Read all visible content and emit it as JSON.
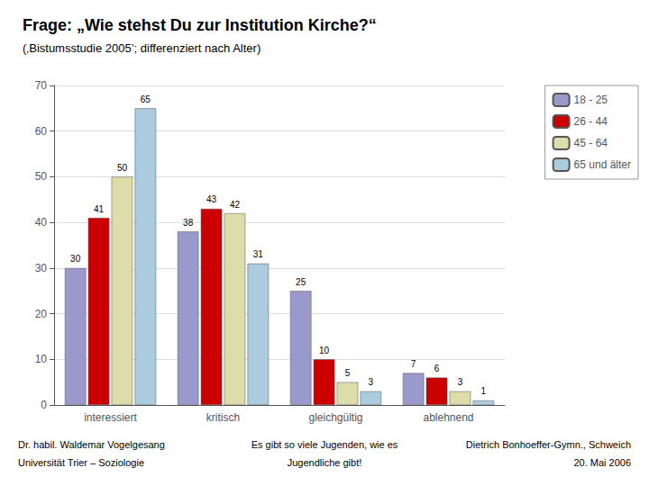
{
  "chart_data": {
    "type": "bar",
    "title": "Frage: „Wie stehst Du zur Institution Kirche?“",
    "subtitle": "(‚Bistumsstudie 2005’; differenziert nach Alter)",
    "categories": [
      "interessiert",
      "kritisch",
      "gleichgültig",
      "ablehnend"
    ],
    "series": [
      {
        "name": "18 - 25",
        "color": "#9999CC",
        "values": [
          30,
          38,
          25,
          7
        ]
      },
      {
        "name": "26 - 44",
        "color": "#CC0000",
        "values": [
          41,
          43,
          10,
          6
        ]
      },
      {
        "name": "45 - 64",
        "color": "#DDDDAA",
        "values": [
          50,
          42,
          5,
          3
        ]
      },
      {
        "name": "65 und älter",
        "color": "#AACCDD",
        "values": [
          65,
          31,
          3,
          1
        ]
      }
    ],
    "ylim": [
      0,
      70
    ],
    "yticks": [
      0,
      10,
      20,
      30,
      40,
      50,
      60,
      70
    ],
    "grid": true,
    "legend": "upper right",
    "data_labels": true,
    "annotations": [
      "Dr. habil. Waldemar Vogelgesang",
      "Universität Trier – Soziologie",
      "Es gibt so viele Jugenden, wie es",
      "Jugendliche gibt!",
      "Dietrich Bonhoeffer-Gymn., Schweich",
      "20. Mai 2006"
    ]
  }
}
